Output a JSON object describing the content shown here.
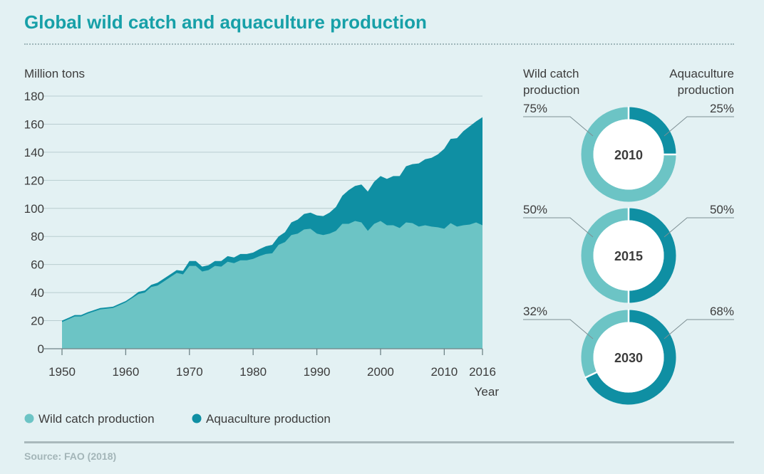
{
  "title": "Global wild catch and aquaculture production",
  "source": "Source: FAO (2018)",
  "colors": {
    "wild": "#6cc4c5",
    "aquaculture": "#0f8fa3",
    "background": "#e3f1f3",
    "title": "#17a0a8"
  },
  "chart_data": [
    {
      "type": "area",
      "stacked": true,
      "ylabel": "Million tons",
      "xlabel": "Year",
      "ylim": [
        0,
        180
      ],
      "yticks": [
        0,
        20,
        40,
        60,
        80,
        100,
        120,
        140,
        160,
        180
      ],
      "xlim": [
        1950,
        2016
      ],
      "xticks": [
        1950,
        1960,
        1970,
        1980,
        1990,
        2000,
        2010,
        2016
      ],
      "grid": true,
      "legend_position": "bottom-left",
      "series": [
        {
          "name": "Wild catch production",
          "color": "#6cc4c5",
          "points": [
            [
              1950,
              19
            ],
            [
              1951,
              21
            ],
            [
              1952,
              23
            ],
            [
              1953,
              23
            ],
            [
              1954,
              25
            ],
            [
              1955,
              26.5
            ],
            [
              1956,
              28
            ],
            [
              1957,
              28.5
            ],
            [
              1958,
              29
            ],
            [
              1959,
              31
            ],
            [
              1960,
              33
            ],
            [
              1961,
              36
            ],
            [
              1962,
              39
            ],
            [
              1963,
              40
            ],
            [
              1964,
              44
            ],
            [
              1965,
              45
            ],
            [
              1966,
              48
            ],
            [
              1967,
              51
            ],
            [
              1968,
              54
            ],
            [
              1969,
              53
            ],
            [
              1970,
              59
            ],
            [
              1971,
              59
            ],
            [
              1972,
              55
            ],
            [
              1973,
              56
            ],
            [
              1974,
              59
            ],
            [
              1975,
              58.5
            ],
            [
              1976,
              62
            ],
            [
              1977,
              61
            ],
            [
              1978,
              63
            ],
            [
              1979,
              63
            ],
            [
              1980,
              64
            ],
            [
              1981,
              66
            ],
            [
              1982,
              67.5
            ],
            [
              1983,
              68
            ],
            [
              1984,
              74
            ],
            [
              1985,
              76
            ],
            [
              1986,
              81
            ],
            [
              1987,
              82
            ],
            [
              1988,
              85
            ],
            [
              1989,
              85.5
            ],
            [
              1990,
              82
            ],
            [
              1991,
              81
            ],
            [
              1992,
              82
            ],
            [
              1993,
              84
            ],
            [
              1994,
              89
            ],
            [
              1995,
              89
            ],
            [
              1996,
              91
            ],
            [
              1997,
              90
            ],
            [
              1998,
              84
            ],
            [
              1999,
              89
            ],
            [
              2000,
              91
            ],
            [
              2001,
              88
            ],
            [
              2002,
              88
            ],
            [
              2003,
              86
            ],
            [
              2004,
              90
            ],
            [
              2005,
              89.5
            ],
            [
              2006,
              87
            ],
            [
              2007,
              88
            ],
            [
              2008,
              87
            ],
            [
              2009,
              86.5
            ],
            [
              2010,
              85.5
            ],
            [
              2011,
              89.5
            ],
            [
              2012,
              87
            ],
            [
              2013,
              88
            ],
            [
              2014,
              88.5
            ],
            [
              2015,
              90
            ],
            [
              2016,
              88
            ]
          ]
        },
        {
          "name": "Aquaculture production",
          "color": "#0f8fa3",
          "points": [
            [
              1950,
              1
            ],
            [
              1951,
              1
            ],
            [
              1952,
              1
            ],
            [
              1953,
              1
            ],
            [
              1954,
              1
            ],
            [
              1955,
              1
            ],
            [
              1956,
              1
            ],
            [
              1957,
              1
            ],
            [
              1958,
              1
            ],
            [
              1959,
              1
            ],
            [
              1960,
              1
            ],
            [
              1961,
              1
            ],
            [
              1962,
              1.5
            ],
            [
              1963,
              1.5
            ],
            [
              1964,
              1.5
            ],
            [
              1965,
              2
            ],
            [
              1966,
              2
            ],
            [
              1967,
              2
            ],
            [
              1968,
              2
            ],
            [
              1969,
              2.5
            ],
            [
              1970,
              3.5
            ],
            [
              1971,
              3.5
            ],
            [
              1972,
              3.5
            ],
            [
              1973,
              3.5
            ],
            [
              1974,
              3.5
            ],
            [
              1975,
              4
            ],
            [
              1976,
              4
            ],
            [
              1977,
              4
            ],
            [
              1978,
              4.5
            ],
            [
              1979,
              4.5
            ],
            [
              1980,
              4.5
            ],
            [
              1981,
              5
            ],
            [
              1982,
              5.5
            ],
            [
              1983,
              6
            ],
            [
              1984,
              6
            ],
            [
              1985,
              7
            ],
            [
              1986,
              9
            ],
            [
              1987,
              10
            ],
            [
              1988,
              11
            ],
            [
              1989,
              11.5
            ],
            [
              1990,
              13
            ],
            [
              1991,
              13.5
            ],
            [
              1992,
              15
            ],
            [
              1993,
              17
            ],
            [
              1994,
              20
            ],
            [
              1995,
              24
            ],
            [
              1996,
              25
            ],
            [
              1997,
              27
            ],
            [
              1998,
              28
            ],
            [
              1999,
              30
            ],
            [
              2000,
              32
            ],
            [
              2001,
              33
            ],
            [
              2002,
              35
            ],
            [
              2003,
              37
            ],
            [
              2004,
              40
            ],
            [
              2005,
              42
            ],
            [
              2006,
              45
            ],
            [
              2007,
              47
            ],
            [
              2008,
              49
            ],
            [
              2009,
              52
            ],
            [
              2010,
              57
            ],
            [
              2011,
              60
            ],
            [
              2012,
              63
            ],
            [
              2013,
              67
            ],
            [
              2014,
              70
            ],
            [
              2015,
              72
            ],
            [
              2016,
              77
            ]
          ]
        }
      ]
    },
    {
      "type": "pie",
      "donut": true,
      "label": "2010",
      "slices": [
        {
          "name": "Wild catch production",
          "value": 75,
          "label": "75%",
          "color": "#6cc4c5"
        },
        {
          "name": "Aquaculture production",
          "value": 25,
          "label": "25%",
          "color": "#0f8fa3"
        }
      ]
    },
    {
      "type": "pie",
      "donut": true,
      "label": "2015",
      "slices": [
        {
          "name": "Wild catch production",
          "value": 50,
          "label": "50%",
          "color": "#6cc4c5"
        },
        {
          "name": "Aquaculture production",
          "value": 50,
          "label": "50%",
          "color": "#0f8fa3"
        }
      ]
    },
    {
      "type": "pie",
      "donut": true,
      "label": "2030",
      "slices": [
        {
          "name": "Wild catch production",
          "value": 32,
          "label": "32%",
          "color": "#6cc4c5"
        },
        {
          "name": "Aquaculture production",
          "value": 68,
          "label": "68%",
          "color": "#0f8fa3"
        }
      ]
    }
  ],
  "donut_headers": {
    "left": [
      "Wild catch",
      "production"
    ],
    "right": [
      "Aquaculture",
      "production"
    ]
  },
  "legend": [
    {
      "label": "Wild catch production",
      "color": "#6cc4c5"
    },
    {
      "label": "Aquaculture production",
      "color": "#0f8fa3"
    }
  ]
}
